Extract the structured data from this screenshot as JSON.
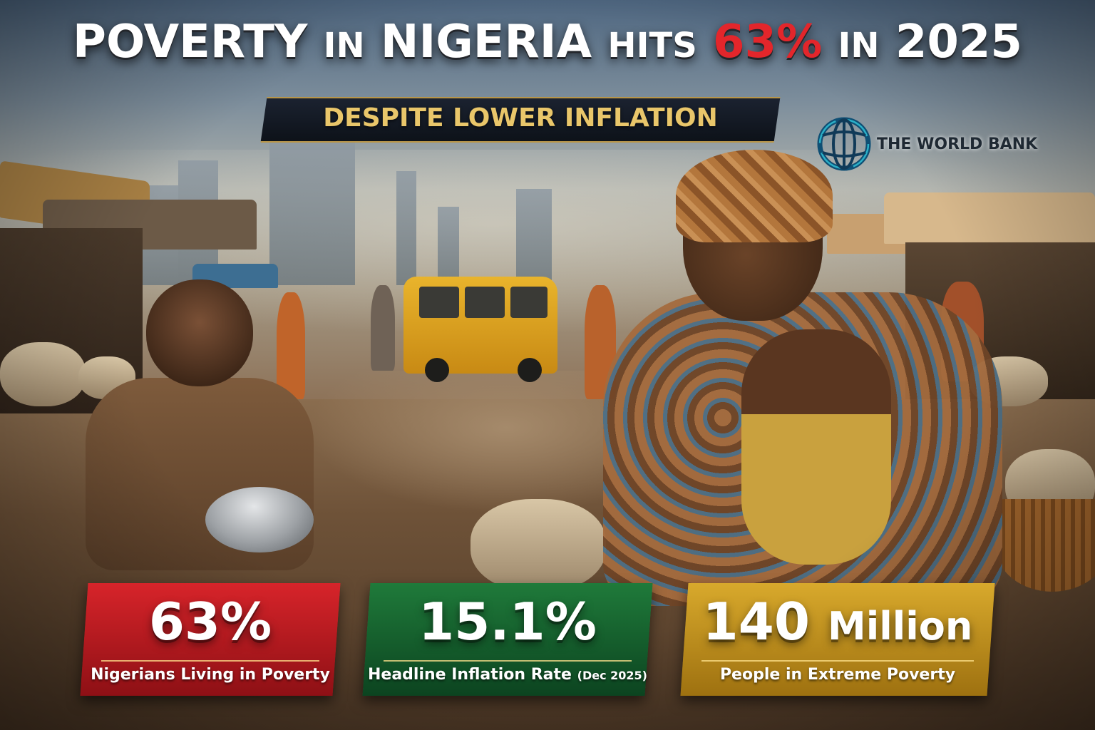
{
  "headline": {
    "word1": "POVERTY",
    "word2": "IN",
    "word3": "NIGERIA",
    "word4": "HITS",
    "highlight": "63%",
    "word5": "IN",
    "word6": "2025",
    "highlight_color": "#e3262b"
  },
  "subheadline": "DESPITE LOWER INFLATION",
  "logo": {
    "name": "THE WORLD BANK",
    "icon": "globe-icon"
  },
  "stats": [
    {
      "value": "63%",
      "unit": "",
      "label": "Nigerians Living in Poverty",
      "note": "",
      "color": "#d7242a"
    },
    {
      "value": "15.1%",
      "unit": "",
      "label": "Headline Inflation Rate",
      "note": "(Dec 2025)",
      "color": "#1f7a3a"
    },
    {
      "value": "140",
      "unit": "Million",
      "label": "People in Extreme Poverty",
      "note": "",
      "color": "#d8a92c"
    }
  ]
}
